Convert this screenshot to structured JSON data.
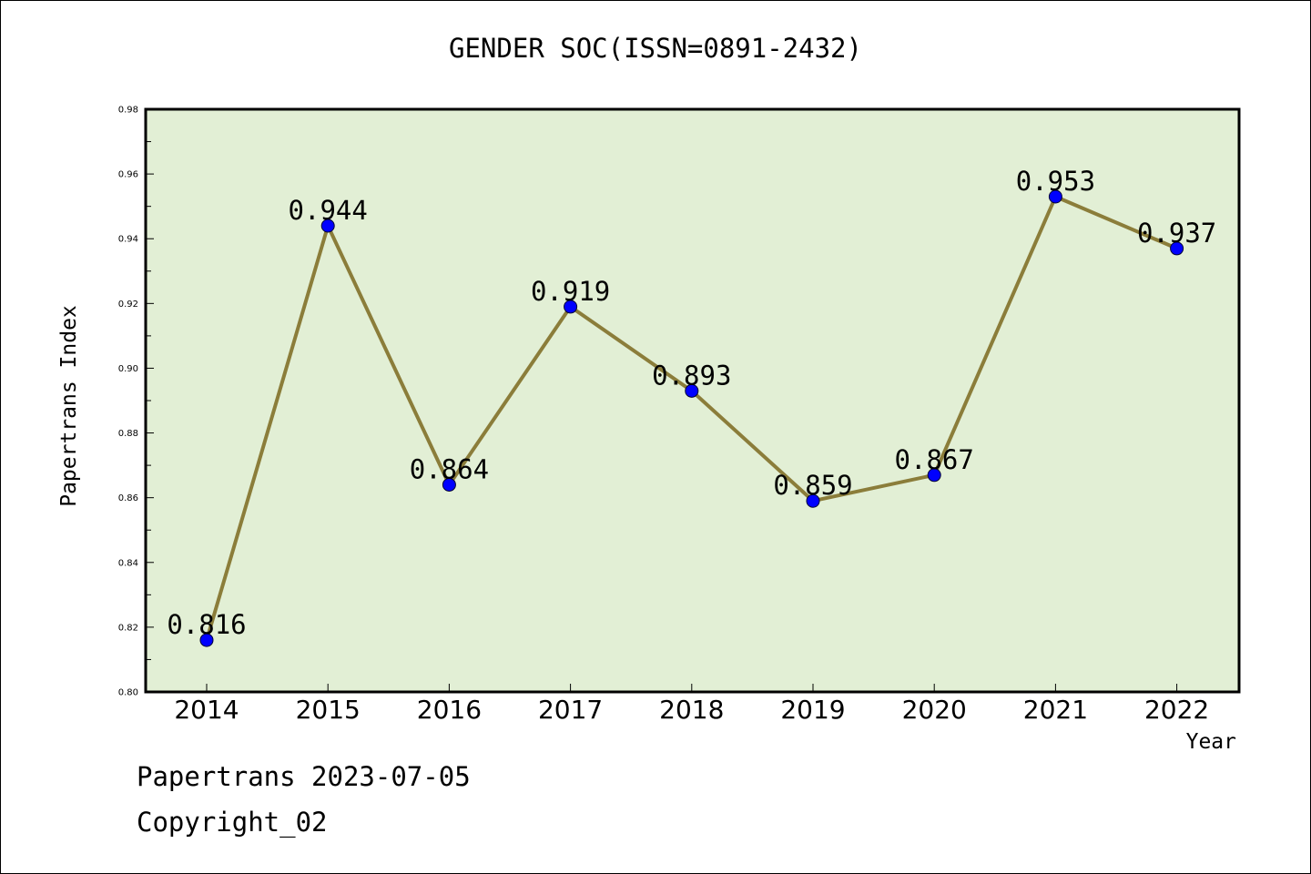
{
  "chart_data": {
    "type": "line",
    "title": "GENDER SOC(ISSN=0891-2432)",
    "xlabel": "Year",
    "ylabel": "Papertrans Index",
    "categories": [
      "2014",
      "2015",
      "2016",
      "2017",
      "2018",
      "2019",
      "2020",
      "2021",
      "2022"
    ],
    "series": [
      {
        "values": [
          0.816,
          0.944,
          0.864,
          0.919,
          0.893,
          0.859,
          0.867,
          0.953,
          0.937
        ],
        "labels": [
          "0.816",
          "0.944",
          "0.864",
          "0.919",
          "0.893",
          "0.859",
          "0.867",
          "0.953",
          "0.937"
        ],
        "line_color": "#8b7d3a",
        "marker_color": "#0000ff"
      }
    ],
    "ylim": [
      0.8,
      0.98
    ],
    "yticks": [
      "0.80",
      "0.82",
      "0.84",
      "0.86",
      "0.88",
      "0.90",
      "0.92",
      "0.94",
      "0.96",
      "0.98"
    ],
    "plot_background": "#e2efd5",
    "grid": false,
    "legend": "none"
  },
  "footer": {
    "line1": "Papertrans 2023-07-05",
    "line2": "Copyright_02"
  }
}
